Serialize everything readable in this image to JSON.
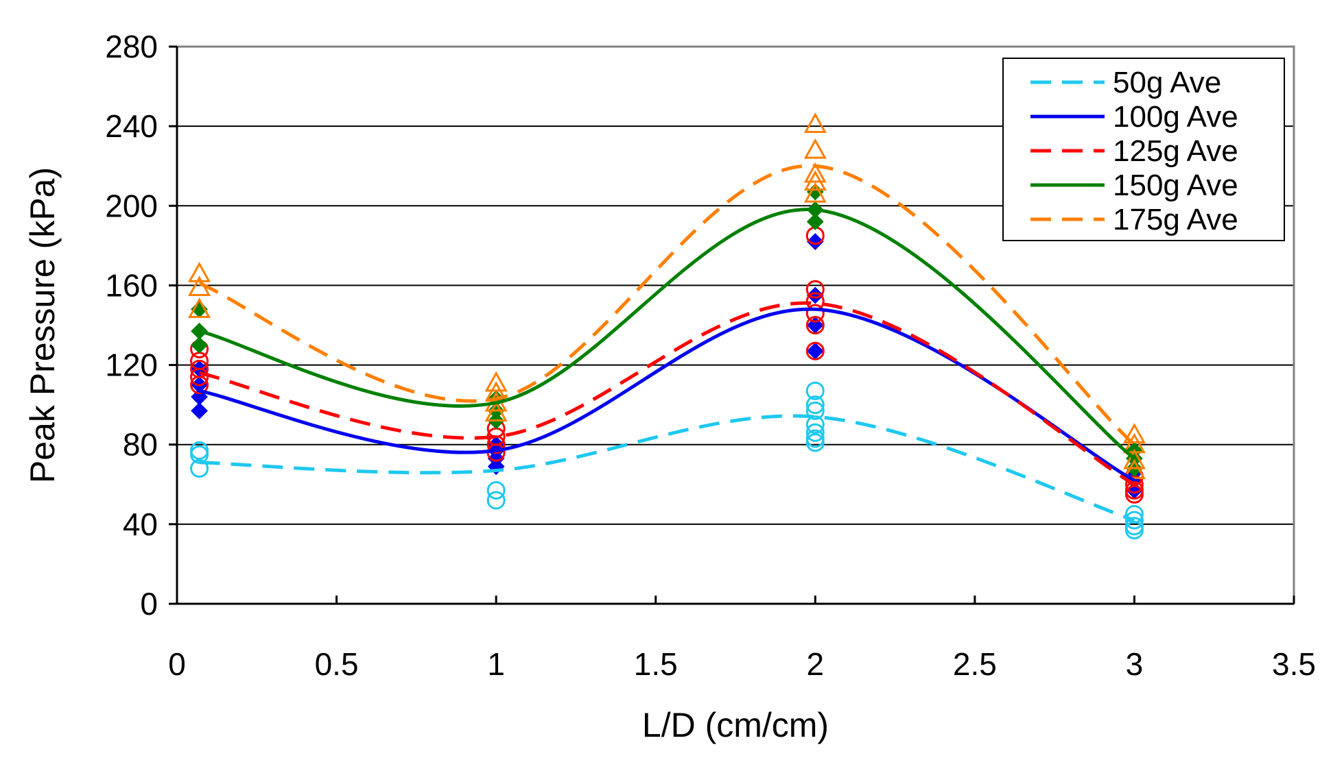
{
  "chart_data": {
    "type": "scatter",
    "title": "",
    "xlabel": "L/D (cm/cm)",
    "ylabel": "Peak Pressure (kPa)",
    "xlim": [
      0,
      3.5
    ],
    "ylim": [
      0,
      280
    ],
    "x_ticks": [
      0,
      0.5,
      1,
      1.5,
      2,
      2.5,
      3,
      3.5
    ],
    "x_tick_labels": [
      "0",
      "0.5",
      "1",
      "1.5",
      "2",
      "2.5",
      "3",
      "3.5"
    ],
    "y_ticks": [
      0,
      40,
      80,
      120,
      160,
      200,
      240,
      280
    ],
    "y_tick_labels": [
      "0",
      "40",
      "80",
      "120",
      "160",
      "200",
      "240",
      "280"
    ],
    "grid": "horizontal",
    "legend_position": "top-right",
    "series": [
      {
        "name": "50g Ave",
        "color": "#1ec8f0",
        "line_style": "dashed",
        "marker": "circle-open",
        "average": [
          [
            0.07,
            71
          ],
          [
            1,
            67
          ],
          [
            2,
            94
          ],
          [
            3,
            42
          ]
        ],
        "points": [
          [
            0.07,
            77
          ],
          [
            0.07,
            75
          ],
          [
            0.07,
            68
          ],
          [
            1,
            57
          ],
          [
            1,
            52
          ],
          [
            2,
            107
          ],
          [
            2,
            100
          ],
          [
            2,
            97
          ],
          [
            2,
            90
          ],
          [
            2,
            86
          ],
          [
            2,
            83
          ],
          [
            2,
            81
          ],
          [
            3,
            45
          ],
          [
            3,
            42
          ],
          [
            3,
            39
          ],
          [
            3,
            37
          ]
        ]
      },
      {
        "name": "100g Ave",
        "color": "#0000ee",
        "line_style": "solid",
        "marker": "diamond-filled",
        "average": [
          [
            0.07,
            107
          ],
          [
            1,
            77
          ],
          [
            2,
            148
          ],
          [
            3,
            62
          ]
        ],
        "points": [
          [
            0.07,
            118
          ],
          [
            0.07,
            110
          ],
          [
            0.07,
            104
          ],
          [
            0.07,
            97
          ],
          [
            1,
            80
          ],
          [
            1,
            77
          ],
          [
            1,
            73
          ],
          [
            1,
            69
          ],
          [
            2,
            182
          ],
          [
            2,
            155
          ],
          [
            2,
            140
          ],
          [
            2,
            127
          ],
          [
            3,
            66
          ],
          [
            3,
            62
          ],
          [
            3,
            57
          ]
        ]
      },
      {
        "name": "125g Ave",
        "color": "#ff0000",
        "line_style": "dashed",
        "marker": "circle-open",
        "average": [
          [
            0.07,
            116
          ],
          [
            1,
            84
          ],
          [
            2,
            151
          ],
          [
            3,
            60
          ]
        ],
        "points": [
          [
            0.07,
            128
          ],
          [
            0.07,
            122
          ],
          [
            0.07,
            118
          ],
          [
            0.07,
            114
          ],
          [
            0.07,
            110
          ],
          [
            1,
            88
          ],
          [
            1,
            84
          ],
          [
            1,
            80
          ],
          [
            1,
            76
          ],
          [
            2,
            185
          ],
          [
            2,
            158
          ],
          [
            2,
            152
          ],
          [
            2,
            146
          ],
          [
            2,
            140
          ],
          [
            2,
            127
          ],
          [
            3,
            64
          ],
          [
            3,
            60
          ],
          [
            3,
            57
          ],
          [
            3,
            55
          ]
        ]
      },
      {
        "name": "150g Ave",
        "color": "#008000",
        "line_style": "solid",
        "marker": "diamond-filled",
        "average": [
          [
            0.07,
            137
          ],
          [
            1,
            101
          ],
          [
            2,
            198
          ],
          [
            3,
            73
          ]
        ],
        "points": [
          [
            0.07,
            148
          ],
          [
            0.07,
            137
          ],
          [
            0.07,
            130
          ],
          [
            1,
            103
          ],
          [
            1,
            97
          ],
          [
            1,
            92
          ],
          [
            2,
            207
          ],
          [
            2,
            198
          ],
          [
            2,
            192
          ],
          [
            3,
            77
          ],
          [
            3,
            73
          ],
          [
            3,
            68
          ]
        ]
      },
      {
        "name": "175g Ave",
        "color": "#ff7f00",
        "line_style": "dashed",
        "marker": "triangle-open",
        "average": [
          [
            0.07,
            161
          ],
          [
            1,
            103
          ],
          [
            2,
            220
          ],
          [
            3,
            80
          ]
        ],
        "points": [
          [
            0.07,
            166
          ],
          [
            0.07,
            159
          ],
          [
            0.07,
            148
          ],
          [
            1,
            111
          ],
          [
            1,
            106
          ],
          [
            1,
            101
          ],
          [
            1,
            96
          ],
          [
            2,
            241
          ],
          [
            2,
            228
          ],
          [
            2,
            216
          ],
          [
            2,
            212
          ],
          [
            2,
            206
          ],
          [
            3,
            85
          ],
          [
            3,
            80
          ],
          [
            3,
            72
          ],
          [
            3,
            67
          ]
        ]
      }
    ]
  }
}
